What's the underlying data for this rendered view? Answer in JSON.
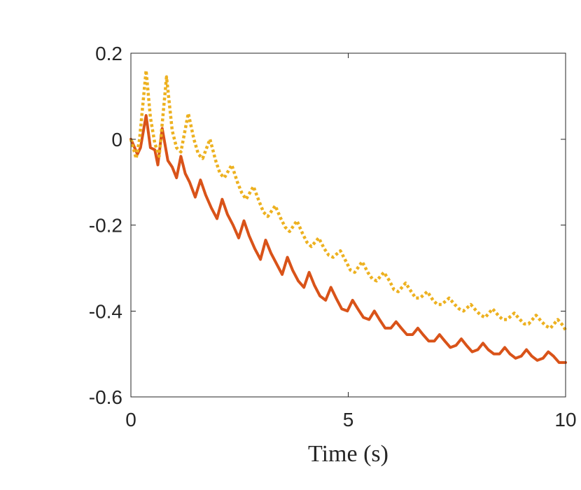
{
  "chart_data": {
    "type": "line",
    "title": "",
    "xlabel": "Time (s)",
    "ylabel": "",
    "xlim": [
      0,
      10
    ],
    "ylim": [
      -0.6,
      0.2
    ],
    "xticks": [
      0,
      5,
      10
    ],
    "xtick_labels": [
      "0",
      "5",
      "10"
    ],
    "yticks": [
      0.2,
      0,
      -0.2,
      -0.4,
      -0.6
    ],
    "ytick_labels": [
      "0.2",
      "0",
      "-0.2",
      "-0.4",
      "-0.6"
    ],
    "grid": false,
    "legend": "none",
    "series": [
      {
        "name": "solid",
        "style": "solid",
        "color": "#D95319",
        "x": [
          0,
          0.15,
          0.22,
          0.35,
          0.45,
          0.55,
          0.62,
          0.72,
          0.85,
          0.95,
          1.05,
          1.15,
          1.25,
          1.35,
          1.48,
          1.6,
          1.72,
          1.85,
          1.98,
          2.1,
          2.22,
          2.35,
          2.48,
          2.6,
          2.72,
          2.85,
          2.98,
          3.1,
          3.22,
          3.35,
          3.48,
          3.6,
          3.72,
          3.85,
          3.98,
          4.1,
          4.22,
          4.35,
          4.48,
          4.6,
          4.72,
          4.85,
          4.98,
          5.1,
          5.22,
          5.35,
          5.48,
          5.6,
          5.72,
          5.85,
          5.98,
          6.1,
          6.22,
          6.35,
          6.48,
          6.6,
          6.72,
          6.85,
          6.98,
          7.1,
          7.22,
          7.35,
          7.48,
          7.6,
          7.72,
          7.85,
          7.98,
          8.1,
          8.22,
          8.35,
          8.48,
          8.6,
          8.72,
          8.85,
          8.98,
          9.1,
          9.22,
          9.35,
          9.48,
          9.6,
          9.72,
          9.85,
          10.0
        ],
        "y": [
          0.0,
          -0.035,
          -0.02,
          0.055,
          -0.02,
          -0.025,
          -0.06,
          0.025,
          -0.05,
          -0.065,
          -0.09,
          -0.04,
          -0.08,
          -0.1,
          -0.135,
          -0.095,
          -0.13,
          -0.16,
          -0.185,
          -0.14,
          -0.175,
          -0.2,
          -0.23,
          -0.19,
          -0.225,
          -0.255,
          -0.28,
          -0.235,
          -0.265,
          -0.29,
          -0.315,
          -0.275,
          -0.305,
          -0.33,
          -0.345,
          -0.31,
          -0.34,
          -0.365,
          -0.375,
          -0.345,
          -0.37,
          -0.395,
          -0.4,
          -0.375,
          -0.395,
          -0.415,
          -0.42,
          -0.4,
          -0.42,
          -0.44,
          -0.44,
          -0.425,
          -0.44,
          -0.455,
          -0.455,
          -0.44,
          -0.455,
          -0.47,
          -0.47,
          -0.455,
          -0.47,
          -0.485,
          -0.48,
          -0.465,
          -0.48,
          -0.495,
          -0.49,
          -0.475,
          -0.49,
          -0.5,
          -0.5,
          -0.485,
          -0.5,
          -0.51,
          -0.505,
          -0.49,
          -0.505,
          -0.515,
          -0.51,
          -0.495,
          -0.505,
          -0.52,
          -0.52
        ]
      },
      {
        "name": "dotted",
        "style": "dotted",
        "color": "#EDB120",
        "x": [
          0,
          0.12,
          0.2,
          0.35,
          0.45,
          0.55,
          0.65,
          0.82,
          0.95,
          1.05,
          1.15,
          1.32,
          1.45,
          1.55,
          1.65,
          1.82,
          1.95,
          2.05,
          2.15,
          2.32,
          2.45,
          2.55,
          2.65,
          2.82,
          2.95,
          3.05,
          3.15,
          3.32,
          3.45,
          3.55,
          3.65,
          3.82,
          3.95,
          4.05,
          4.15,
          4.32,
          4.45,
          4.55,
          4.65,
          4.82,
          4.95,
          5.05,
          5.15,
          5.32,
          5.45,
          5.55,
          5.65,
          5.82,
          5.95,
          6.05,
          6.15,
          6.32,
          6.45,
          6.55,
          6.65,
          6.82,
          6.95,
          7.05,
          7.15,
          7.32,
          7.45,
          7.55,
          7.65,
          7.82,
          7.95,
          8.05,
          8.15,
          8.32,
          8.45,
          8.55,
          8.65,
          8.82,
          8.95,
          9.05,
          9.15,
          9.32,
          9.45,
          9.55,
          9.65,
          9.82,
          9.95,
          10.0
        ],
        "y": [
          0.0,
          -0.045,
          0.0,
          0.16,
          0.05,
          -0.01,
          -0.04,
          0.145,
          0.02,
          -0.02,
          -0.03,
          0.06,
          0.0,
          -0.035,
          -0.045,
          0.0,
          -0.05,
          -0.08,
          -0.09,
          -0.06,
          -0.1,
          -0.125,
          -0.14,
          -0.11,
          -0.145,
          -0.17,
          -0.18,
          -0.155,
          -0.185,
          -0.205,
          -0.215,
          -0.19,
          -0.22,
          -0.24,
          -0.25,
          -0.23,
          -0.255,
          -0.27,
          -0.275,
          -0.26,
          -0.285,
          -0.305,
          -0.31,
          -0.285,
          -0.31,
          -0.325,
          -0.33,
          -0.31,
          -0.33,
          -0.35,
          -0.355,
          -0.335,
          -0.355,
          -0.37,
          -0.37,
          -0.355,
          -0.375,
          -0.385,
          -0.385,
          -0.37,
          -0.385,
          -0.395,
          -0.4,
          -0.385,
          -0.4,
          -0.41,
          -0.415,
          -0.395,
          -0.41,
          -0.42,
          -0.42,
          -0.405,
          -0.42,
          -0.43,
          -0.43,
          -0.41,
          -0.425,
          -0.435,
          -0.44,
          -0.42,
          -0.435,
          -0.445
        ]
      }
    ]
  }
}
